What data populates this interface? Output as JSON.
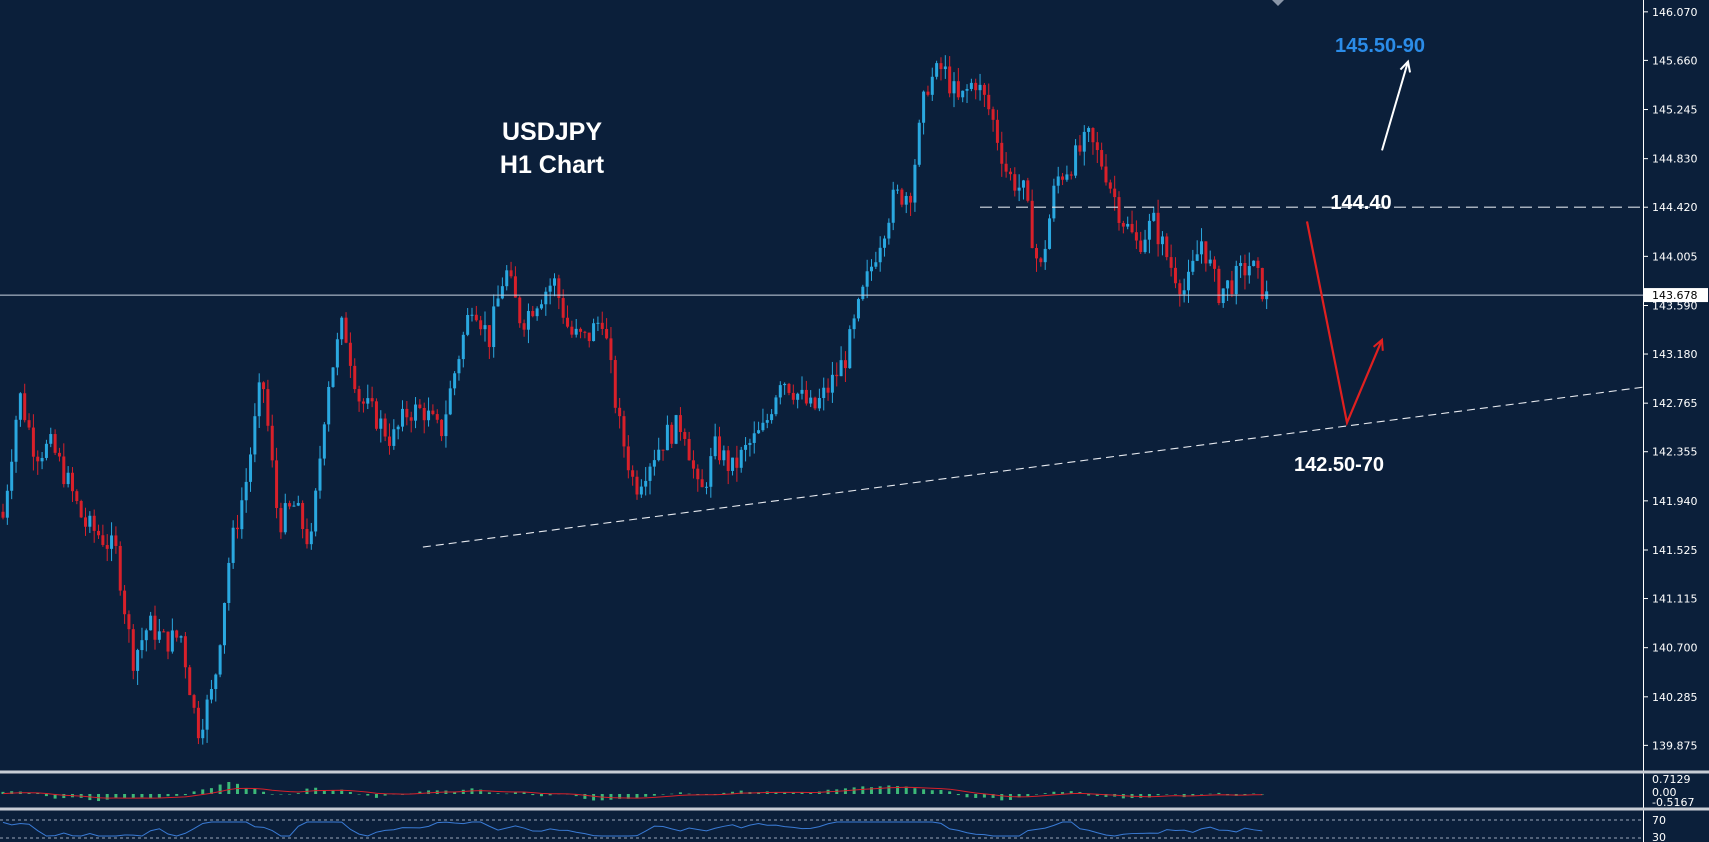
{
  "chart_data": {
    "type": "candlestick",
    "title": "USDJPY",
    "subtitle": "H1 Chart",
    "ylim": [
      139.65,
      146.17
    ],
    "y_ticks": [
      "146.070",
      "145.660",
      "145.245",
      "144.830",
      "144.420",
      "144.005",
      "143.590",
      "143.180",
      "142.765",
      "142.355",
      "141.940",
      "141.525",
      "141.115",
      "140.700",
      "140.285",
      "139.875"
    ],
    "current_price": "143.678",
    "colors": {
      "background": "#0b1f3a",
      "bull": "#2aa8e0",
      "bear": "#d8202a",
      "arrow_up": "#ffffff",
      "arrow_down": "#e02020",
      "label_accent": "#2b8ce8",
      "macd_hist": "#3cb878",
      "signal": "#d8202a",
      "rsi": "#3a7bd5"
    },
    "path": [
      141.8,
      142.85,
      142.35,
      142.4,
      142.1,
      141.75,
      141.65,
      141.5,
      140.6,
      140.9,
      140.75,
      140.8,
      140.0,
      140.35,
      141.5,
      142.1,
      143.0,
      141.75,
      141.9,
      141.55,
      142.9,
      143.45,
      142.8,
      142.65,
      142.45,
      142.7,
      142.7,
      142.5,
      143.1,
      143.65,
      143.3,
      143.9,
      143.45,
      143.65,
      143.8,
      143.35,
      143.3,
      143.5,
      142.6,
      142.05,
      142.3,
      142.5,
      142.6,
      141.95,
      142.4,
      142.2,
      142.4,
      142.55,
      143.0,
      142.85,
      142.7,
      142.9,
      143.15,
      143.65,
      144.1,
      144.5,
      144.55,
      145.45,
      145.6,
      145.3,
      145.5,
      145.2,
      144.7,
      144.55,
      143.85,
      144.65,
      144.8,
      145.0,
      144.75,
      144.35,
      144.1,
      144.3,
      143.95,
      143.7,
      144.15,
      143.7,
      143.8,
      143.95,
      143.65
    ],
    "levels": [
      {
        "label": "144.40",
        "value": 144.42,
        "style": "dashed"
      }
    ],
    "trendline": {
      "style": "dashed",
      "from": [
        0.244,
        141.55
      ],
      "to": [
        1.0,
        142.9
      ]
    },
    "annotations": {
      "target_up": "145.50-90",
      "resistance": "144.40",
      "support": "142.50-70"
    },
    "scenario": {
      "down_to": 142.6,
      "rebound_to": 143.3,
      "up_to": 145.65,
      "start": 144.3
    },
    "macd": {
      "ticks": [
        "0.7129",
        "0.00",
        "-0.5167"
      ]
    },
    "rsi": {
      "ticks": [
        "70",
        "30"
      ]
    }
  }
}
